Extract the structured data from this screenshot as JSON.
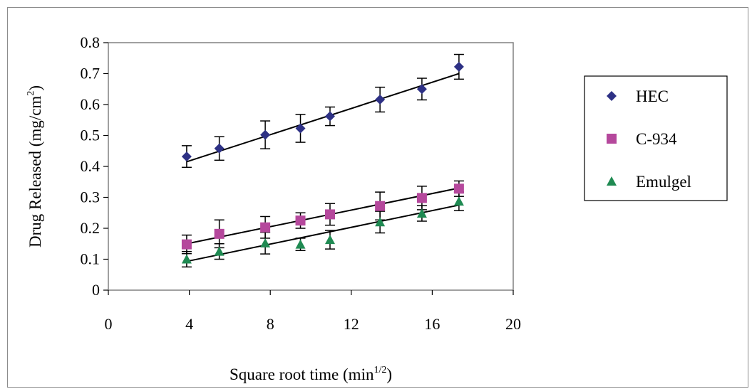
{
  "chart_data": {
    "type": "scatter",
    "title": "",
    "xlabel": "Square root time (min",
    "xlabel_sup": "1/2",
    "xlabel_close": ")",
    "ylabel": "Drug Released (mg/cm",
    "ylabel_sup": "2",
    "ylabel_close": ")",
    "xlim": [
      0,
      20
    ],
    "ylim": [
      0,
      0.8
    ],
    "xticks": [
      "0",
      "4",
      "8",
      "12",
      "16",
      "20"
    ],
    "yticks": [
      "0",
      "0.1",
      "0.2",
      "0.3",
      "0.4",
      "0.5",
      "0.6",
      "0.7",
      "0.8"
    ],
    "grid": false,
    "legend_position": "right",
    "series": [
      {
        "name": "HEC",
        "marker": "diamond",
        "color": "#2e3185",
        "x": [
          3.87,
          5.48,
          7.75,
          9.49,
          10.95,
          13.42,
          15.49,
          17.32
        ],
        "y": [
          0.432,
          0.458,
          0.502,
          0.523,
          0.562,
          0.616,
          0.65,
          0.722
        ],
        "err": [
          0.035,
          0.038,
          0.045,
          0.045,
          0.03,
          0.04,
          0.035,
          0.04
        ],
        "trend": [
          0.415,
          0.7
        ]
      },
      {
        "name": "C-934",
        "marker": "square",
        "color": "#b5489c",
        "x": [
          3.87,
          5.48,
          7.75,
          9.49,
          10.95,
          13.42,
          15.49,
          17.32
        ],
        "y": [
          0.148,
          0.182,
          0.203,
          0.225,
          0.245,
          0.272,
          0.298,
          0.328
        ],
        "err": [
          0.03,
          0.045,
          0.035,
          0.025,
          0.035,
          0.045,
          0.038,
          0.025
        ],
        "trend": [
          0.15,
          0.33
        ]
      },
      {
        "name": "Emulgel",
        "marker": "triangle",
        "color": "#1f8a52",
        "x": [
          3.87,
          5.48,
          7.75,
          9.49,
          10.95,
          13.42,
          15.49,
          17.32
        ],
        "y": [
          0.1,
          0.125,
          0.152,
          0.148,
          0.163,
          0.22,
          0.248,
          0.287
        ],
        "err": [
          0.025,
          0.025,
          0.035,
          0.02,
          0.03,
          0.035,
          0.025,
          0.03
        ],
        "trend": [
          0.093,
          0.275
        ]
      }
    ]
  }
}
